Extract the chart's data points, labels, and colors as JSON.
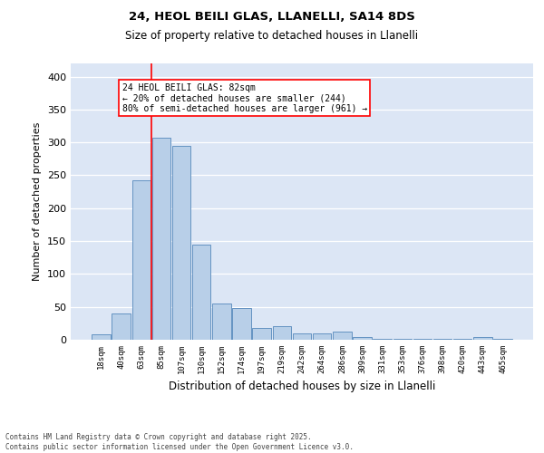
{
  "title1": "24, HEOL BEILI GLAS, LLANELLI, SA14 8DS",
  "title2": "Size of property relative to detached houses in Llanelli",
  "xlabel": "Distribution of detached houses by size in Llanelli",
  "ylabel": "Number of detached properties",
  "bar_labels": [
    "18sqm",
    "40sqm",
    "63sqm",
    "85sqm",
    "107sqm",
    "130sqm",
    "152sqm",
    "174sqm",
    "197sqm",
    "219sqm",
    "242sqm",
    "264sqm",
    "286sqm",
    "309sqm",
    "331sqm",
    "353sqm",
    "376sqm",
    "398sqm",
    "420sqm",
    "443sqm",
    "465sqm"
  ],
  "bar_values": [
    8,
    40,
    242,
    307,
    295,
    145,
    55,
    48,
    18,
    20,
    9,
    10,
    12,
    4,
    2,
    2,
    1,
    1,
    1,
    4,
    2
  ],
  "bar_color": "#b8cfe8",
  "bar_edge_color": "#5588bb",
  "bg_color": "#dce6f5",
  "grid_color": "#ffffff",
  "vline_color": "red",
  "annotation_text": "24 HEOL BEILI GLAS: 82sqm\n← 20% of detached houses are smaller (244)\n80% of semi-detached houses are larger (961) →",
  "annotation_box_color": "white",
  "annotation_box_edge": "red",
  "ylim": [
    0,
    420
  ],
  "yticks": [
    0,
    50,
    100,
    150,
    200,
    250,
    300,
    350,
    400
  ],
  "footer": "Contains HM Land Registry data © Crown copyright and database right 2025.\nContains public sector information licensed under the Open Government Licence v3.0."
}
